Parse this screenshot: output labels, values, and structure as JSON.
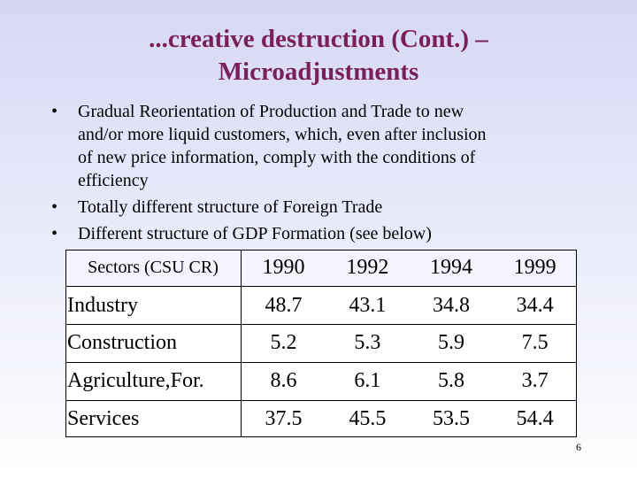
{
  "title": {
    "line1": "...creative destruction (Cont.) –",
    "line2": "Microadjustments"
  },
  "bullets": [
    {
      "marker": "•",
      "lines": [
        "Gradual Reorientation of Production and Trade  to new",
        "and/or more liquid customers, which, even after inclusion",
        "of new price information, comply with the conditions of",
        "efficiency"
      ]
    },
    {
      "marker": "•",
      "lines": [
        "Totally different structure of Foreign Trade"
      ]
    },
    {
      "marker": "•",
      "lines": [
        "Different structure of GDP Formation (see below)"
      ]
    }
  ],
  "table": {
    "header": [
      "Sectors (CSU CR)",
      "1990",
      "1992",
      "1994",
      "1999"
    ],
    "rows": [
      [
        "Industry",
        "48.7",
        "43.1",
        "34.8",
        "34.4"
      ],
      [
        "Construction",
        "5.2",
        "5.3",
        "5.9",
        "7.5"
      ],
      [
        "Agriculture,For.",
        "8.6",
        "6.1",
        "5.8",
        "3.7"
      ],
      [
        "Services",
        "37.5",
        "45.5",
        "53.5",
        "54.4"
      ]
    ]
  },
  "page_number": "6"
}
